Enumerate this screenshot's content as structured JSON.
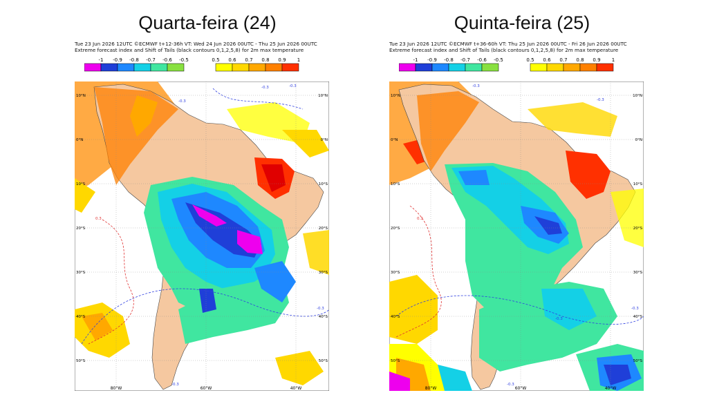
{
  "panels": [
    {
      "title": "Quarta-feira (24)",
      "header_line1": "Tue 23 Jun 2026 12UTC ©ECMWF t+12-36h  VT: Wed 24 Jun 2026 00UTC - Thu 25 Jun 2026 00UTC",
      "header_line2": "Extreme forecast index and Shift of Tails (black contours 0,1,2,5,8) for 2m max temperature",
      "contour_labels": [
        "-0.3",
        "-0.3",
        "-0.3",
        "0.3",
        "-0.3",
        "-0.3"
      ]
    },
    {
      "title": "Quinta-feira (25)",
      "header_line1": "Tue 23 Jun 2026 12UTC ©ECMWF t+36-60h  VT: Thu 25 Jun 2026 00UTC - Fri 26 Jun 2026 00UTC",
      "header_line2": "Extreme forecast index and Shift of Tails (black contours 0,1,2,5,8) for 2m max temperature",
      "contour_labels": [
        "-0.3",
        "-0.3",
        "-0.3",
        "-0.3",
        "-0.3",
        "0.3"
      ]
    }
  ],
  "legend": {
    "cold_labels": [
      "-1",
      "-0.9",
      "-0.8",
      "-0.7",
      "-0.6",
      "-0.5"
    ],
    "cold_colors": [
      "#ee00ee",
      "#1f3fd8",
      "#1e88ff",
      "#14d0e6",
      "#40e6a0",
      "#88e040"
    ],
    "warm_labels": [
      "0.5",
      "0.6",
      "0.7",
      "0.8",
      "0.9",
      "1"
    ],
    "warm_colors": [
      "#ffff00",
      "#ffd800",
      "#ffa800",
      "#ff8000",
      "#ff3000"
    ]
  },
  "map_axes": {
    "lon_labels": [
      "80°W",
      "60°W",
      "40°W"
    ],
    "lat_labels": [
      "10°N",
      "0°N",
      "10°S",
      "20°S",
      "30°S",
      "40°S",
      "50°S"
    ]
  },
  "colors": {
    "land": "#f5c8a0",
    "warm": "#ffaa44",
    "ocean": "#ffffff"
  }
}
